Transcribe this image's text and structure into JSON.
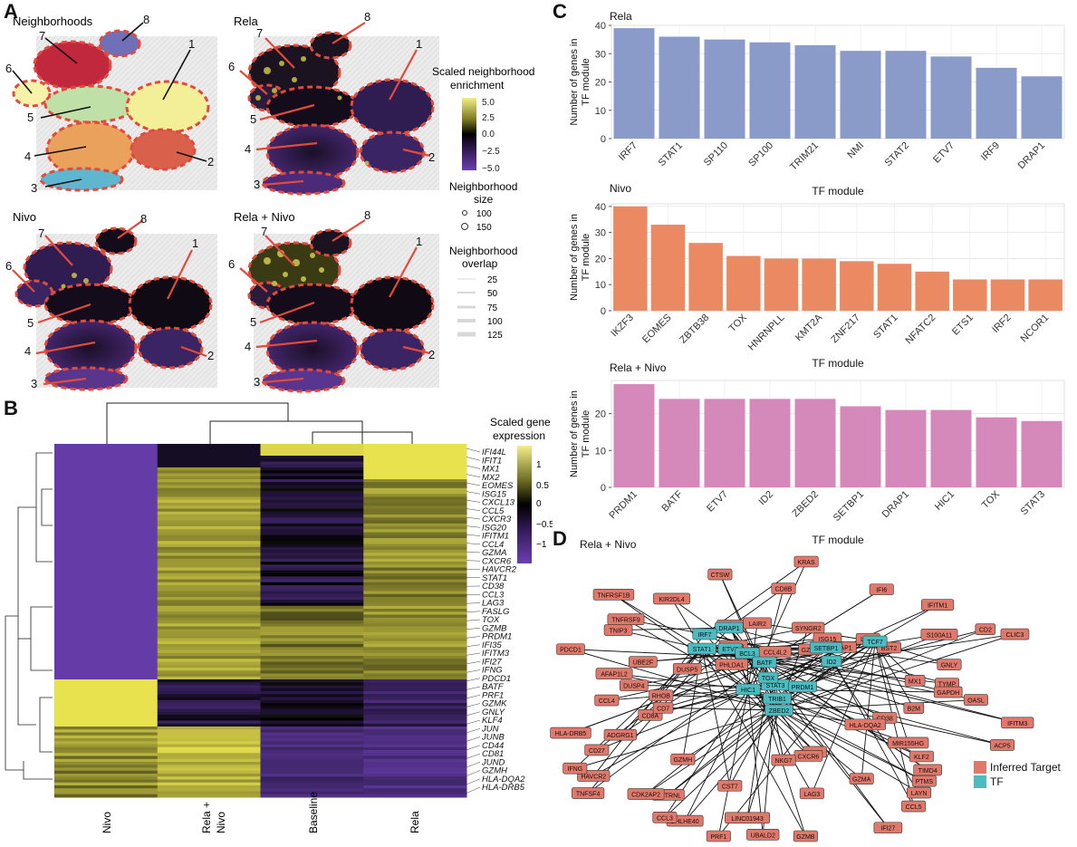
{
  "panels": {
    "a": {
      "letter": "A",
      "subplots": [
        {
          "title": "Neighborhoods"
        },
        {
          "title": "Rela"
        },
        {
          "title": "Nivo"
        },
        {
          "title": "Rela + Nivo"
        }
      ],
      "region_labels": [
        "1",
        "2",
        "3",
        "4",
        "5",
        "6",
        "7",
        "8"
      ],
      "region_colors": {
        "1": "#f3ef98",
        "2": "#d9604a",
        "3": "#5fb6cf",
        "4": "#e9a15c",
        "5": "#bfe1a8",
        "6": "#f6f2a8",
        "7": "#c2283d",
        "8": "#7070b8"
      },
      "legend": {
        "enrichment_title": "Scaled neighborhood enrichment",
        "enrichment_ticks": [
          "5.0",
          "2.5",
          "0.0",
          "−2.5",
          "−5.0"
        ],
        "size_title": "Neighborhood size",
        "size_ticks": [
          "100",
          "150"
        ],
        "overlap_title": "Neighborhood overlap",
        "overlap_ticks": [
          "25",
          "50",
          "75",
          "100",
          "125"
        ]
      }
    },
    "b": {
      "letter": "B",
      "columns": [
        "Nivo",
        "Rela +\nNivo",
        "Baseline",
        "Rela"
      ],
      "genes": [
        "IFI44L",
        "IFIT1",
        "MX1",
        "MX2",
        "EOMES",
        "ISG15",
        "CXCL13",
        "CCL5",
        "CXCR3",
        "ISG20",
        "IFITM1",
        "CCL4",
        "GZMA",
        "CXCR6",
        "HAVCR2",
        "STAT1",
        "CD38",
        "CCL3",
        "LAG3",
        "FASLG",
        "TOX",
        "GZMB",
        "PRDM1",
        "IFI35",
        "IFITM3",
        "IFI27",
        "IFNG",
        "PDCD1",
        "BATF",
        "PRF1",
        "GZMK",
        "GNLY",
        "KLF4",
        "JUN",
        "JUNB",
        "CD44",
        "CD81",
        "JUND",
        "GZMH",
        "HLA-DQA2",
        "HLA-DRB5"
      ],
      "legend_title": "Scaled gene expression",
      "legend_ticks": [
        "1",
        "0.5",
        "0",
        "−0.5",
        "−1"
      ]
    },
    "c": {
      "letter": "C",
      "ylabel": "Number of genes in TF module",
      "xlabel": "TF module"
    },
    "d": {
      "letter": "D",
      "title": "Rela + Nivo",
      "legend": [
        {
          "label": "Inferred Target",
          "color": "#e0786b"
        },
        {
          "label": "TF",
          "color": "#4cbcc3"
        }
      ],
      "tf_nodes": [
        "DRAP1",
        "IRF7",
        "STAT1",
        "ETV7",
        "BCL3",
        "BATF",
        "STAT3",
        "TOX",
        "HIC1",
        "TRIB1",
        "PRDM1",
        "ZBED2",
        "ID2",
        "SETBP1",
        "TCF7"
      ],
      "target_nodes": [
        "CD8B",
        "KRAS",
        "SYNGR2",
        "GZMK",
        "ISG15",
        "IFI6",
        "TAP1",
        "LY6E",
        "IFITM1",
        "BST2",
        "S100A11",
        "CD2",
        "CLIC3",
        "GNLY",
        "MX1",
        "TYMP",
        "GAPDH",
        "OASL",
        "B2M",
        "IFITM3",
        "CD38",
        "ACP5",
        "HLA-DQA2",
        "MIR155HG",
        "KLF2",
        "TIMD4",
        "PTMS",
        "LAYN",
        "CCL5",
        "GZMA",
        "IFI27",
        "CD63",
        "CXCR6",
        "LAG3",
        "GZMB",
        "NKG7",
        "UBALD2",
        "LINC01943",
        "PRF1",
        "CST7",
        "BHLHE40",
        "CCL3",
        "METRNL",
        "CDK2AP2",
        "GZMH",
        "TNFSF4",
        "HAVCR2",
        "IFNG",
        "CD27",
        "ADGRG1",
        "HLA-DRB5",
        "CD8A",
        "CD7",
        "CCL4",
        "RHOB",
        "DUSP4",
        "AFAP1L2",
        "PDCD1",
        "UBE2F",
        "DUSP5",
        "TNIP3",
        "TNFRSF9",
        "TNFRSF1B",
        "PHLDA1",
        "KIR2DL4",
        "RDH10",
        "FASLG",
        "CTSW",
        "LAIR2",
        "CCL4L2"
      ]
    }
  },
  "chart_data": [
    {
      "type": "bar",
      "title": "Rela",
      "xlabel": "TF module",
      "ylabel": "Number of genes in TF module",
      "categories": [
        "IRF7",
        "STAT1",
        "SP110",
        "SP100",
        "TRIM21",
        "NMI",
        "STAT2",
        "ETV7",
        "IRF9",
        "DRAP1"
      ],
      "values": [
        39,
        36,
        35,
        34,
        33,
        31,
        31,
        29,
        25,
        22
      ],
      "ylim": [
        0,
        40
      ],
      "yticks": [
        0,
        10,
        20,
        30,
        40
      ],
      "color": "#8a9bc9",
      "grid": true
    },
    {
      "type": "bar",
      "title": "Nivo",
      "xlabel": "TF module",
      "ylabel": "Number of genes in TF module",
      "categories": [
        "IKZF3",
        "EOMES",
        "ZBTB38",
        "TOX",
        "HNRNPLL",
        "KMT2A",
        "ZNF217",
        "STAT1",
        "NFATC2",
        "ETS1",
        "IRF2",
        "NCOR1"
      ],
      "values": [
        40,
        33,
        26,
        21,
        20,
        20,
        19,
        18,
        15,
        12,
        12,
        12
      ],
      "ylim": [
        0,
        41
      ],
      "yticks": [
        0,
        10,
        20,
        30,
        40
      ],
      "color": "#eb8a62",
      "grid": true
    },
    {
      "type": "bar",
      "title": "Rela + Nivo",
      "xlabel": "TF module",
      "ylabel": "Number of genes in TF module",
      "categories": [
        "PRDM1",
        "BATF",
        "ETV7",
        "ID2",
        "ZBED2",
        "SETBP1",
        "DRAP1",
        "HIC1",
        "TOX",
        "STAT3"
      ],
      "values": [
        28,
        24,
        24,
        24,
        24,
        22,
        21,
        21,
        19,
        18
      ],
      "ylim": [
        0,
        29
      ],
      "yticks": [
        0,
        10,
        20
      ],
      "color": "#d588ba",
      "grid": true
    }
  ]
}
